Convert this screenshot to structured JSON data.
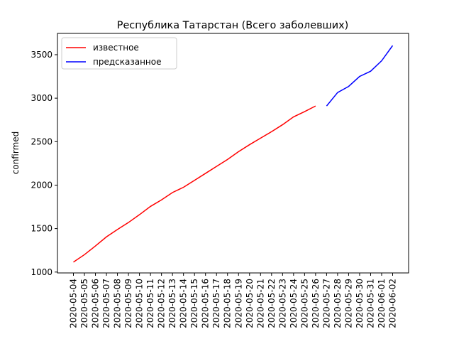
{
  "chart_data": {
    "type": "line",
    "title": "Республика Татарстан (Всего заболевших)",
    "y_label": "confirmed",
    "x": [
      "2020-05-04",
      "2020-05-05",
      "2020-05-06",
      "2020-05-07",
      "2020-05-08",
      "2020-05-09",
      "2020-05-10",
      "2020-05-11",
      "2020-05-12",
      "2020-05-13",
      "2020-05-14",
      "2020-05-15",
      "2020-05-16",
      "2020-05-17",
      "2020-05-18",
      "2020-05-19",
      "2020-05-20",
      "2020-05-21",
      "2020-05-22",
      "2020-05-23",
      "2020-05-24",
      "2020-05-25",
      "2020-05-26",
      "2020-05-27",
      "2020-05-28",
      "2020-05-29",
      "2020-05-30",
      "2020-05-31",
      "2020-06-01",
      "2020-06-02"
    ],
    "series": [
      {
        "name": "известное",
        "color": "#ff0000",
        "values": [
          1115,
          1200,
          1300,
          1405,
          1490,
          1570,
          1660,
          1755,
          1830,
          1915,
          1975,
          2055,
          2135,
          2215,
          2295,
          2385,
          2465,
          2540,
          2615,
          2695,
          2785,
          2845,
          2910,
          null,
          null,
          null,
          null,
          null,
          null,
          null
        ]
      },
      {
        "name": "предсказанное",
        "color": "#0000ff",
        "values": [
          null,
          null,
          null,
          null,
          null,
          null,
          null,
          null,
          null,
          null,
          null,
          null,
          null,
          null,
          null,
          null,
          null,
          null,
          null,
          null,
          null,
          null,
          null,
          2910,
          3065,
          3135,
          3250,
          3310,
          3430,
          3605
        ]
      }
    ],
    "ylim": [
      990,
      3745
    ],
    "yticks": [
      1000,
      1500,
      2000,
      2500,
      3000,
      3500
    ],
    "legend": "upper left"
  }
}
